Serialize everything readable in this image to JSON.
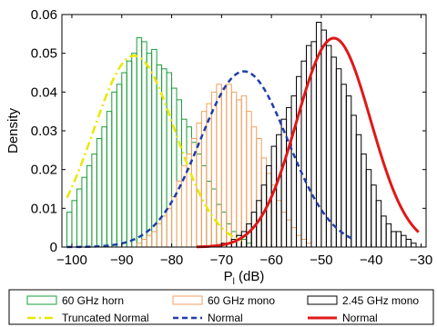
{
  "chart_data": {
    "type": "bar",
    "xlabel": "P",
    "xlabel_subscript": "l",
    "xlabel_unit": "(dB)",
    "ylabel": "Density",
    "xlim": [
      -102,
      -29
    ],
    "ylim": [
      0,
      0.06
    ],
    "xticks": [
      -100,
      -90,
      -80,
      -70,
      -60,
      -50,
      -40,
      -30
    ],
    "xtick_labels": [
      "−100",
      "−90",
      "−80",
      "−70",
      "−60",
      "−50",
      "−40",
      "−30"
    ],
    "yticks": [
      0,
      0.01,
      0.02,
      0.03,
      0.04,
      0.05,
      0.06
    ],
    "ytick_labels": [
      "0",
      "0.01",
      "0.02",
      "0.03",
      "0.04",
      "0.05",
      "0.06"
    ],
    "grid": false,
    "legend_position": "below",
    "bin_width": 1,
    "histograms": [
      {
        "name": "60 GHz horn",
        "color": "#1a9e3a",
        "bin_start": -101,
        "values": [
          0.009,
          0.012,
          0.015,
          0.018,
          0.021,
          0.024,
          0.028,
          0.031,
          0.035,
          0.04,
          0.042,
          0.045,
          0.048,
          0.05,
          0.054,
          0.053,
          0.05,
          0.051,
          0.047,
          0.046,
          0.045,
          0.041,
          0.038,
          0.033,
          0.031,
          0.027,
          0.024,
          0.021,
          0.017,
          0.015,
          0.011,
          0.009,
          0.006,
          0.004,
          0.003,
          0.002,
          0.001
        ]
      },
      {
        "name": "60 GHz mono",
        "color": "#f0a060",
        "bin_start": -87,
        "values": [
          0.001,
          0.002,
          0.003,
          0.004,
          0.006,
          0.008,
          0.01,
          0.013,
          0.017,
          0.021,
          0.024,
          0.028,
          0.032,
          0.035,
          0.037,
          0.04,
          0.042,
          0.041,
          0.042,
          0.04,
          0.038,
          0.039,
          0.035,
          0.031,
          0.028,
          0.023,
          0.019,
          0.016,
          0.012,
          0.009,
          0.007,
          0.005,
          0.003,
          0.002,
          0.001
        ]
      },
      {
        "name": "2.45 GHz mono",
        "color": "#000000",
        "bin_start": -70,
        "values": [
          0.001,
          0.001,
          0.002,
          0.003,
          0.004,
          0.006,
          0.009,
          0.012,
          0.016,
          0.021,
          0.026,
          0.029,
          0.033,
          0.036,
          0.039,
          0.044,
          0.048,
          0.052,
          0.053,
          0.058,
          0.056,
          0.052,
          0.049,
          0.046,
          0.042,
          0.039,
          0.034,
          0.029,
          0.024,
          0.02,
          0.016,
          0.012,
          0.008,
          0.006,
          0.004,
          0.004,
          0.003,
          0.002,
          0.001
        ]
      }
    ],
    "curves": [
      {
        "name": "Truncated Normal",
        "color": "#e8e800",
        "dash": "dashdot",
        "mu": -87.5,
        "sigma": 8.2,
        "scale": 1.015,
        "xmin": -101,
        "xmax": -66
      },
      {
        "name": "Normal",
        "color": "#1f3fa8",
        "dash": "dashed",
        "mu": -65.5,
        "sigma": 8.8,
        "scale": 1.0,
        "xmin": -101,
        "xmax": -44
      },
      {
        "name": "Normal",
        "color": "#e01818",
        "dash": "solid",
        "mu": -47.5,
        "sigma": 7.4,
        "scale": 1.0,
        "xmin": -75,
        "xmax": -30.5
      }
    ],
    "legend": [
      {
        "label": "60 GHz horn",
        "kind": "patch",
        "color": "#1a9e3a"
      },
      {
        "label": "60 GHz mono",
        "kind": "patch",
        "color": "#f0a060"
      },
      {
        "label": "2.45 GHz mono",
        "kind": "patch",
        "color": "#000000"
      },
      {
        "label": "Truncated Normal",
        "kind": "line",
        "color": "#e8e800",
        "dash": "dashdot"
      },
      {
        "label": "Normal",
        "kind": "line",
        "color": "#1f3fa8",
        "dash": "dashed"
      },
      {
        "label": "Normal",
        "kind": "line",
        "color": "#e01818",
        "dash": "solid"
      }
    ]
  }
}
